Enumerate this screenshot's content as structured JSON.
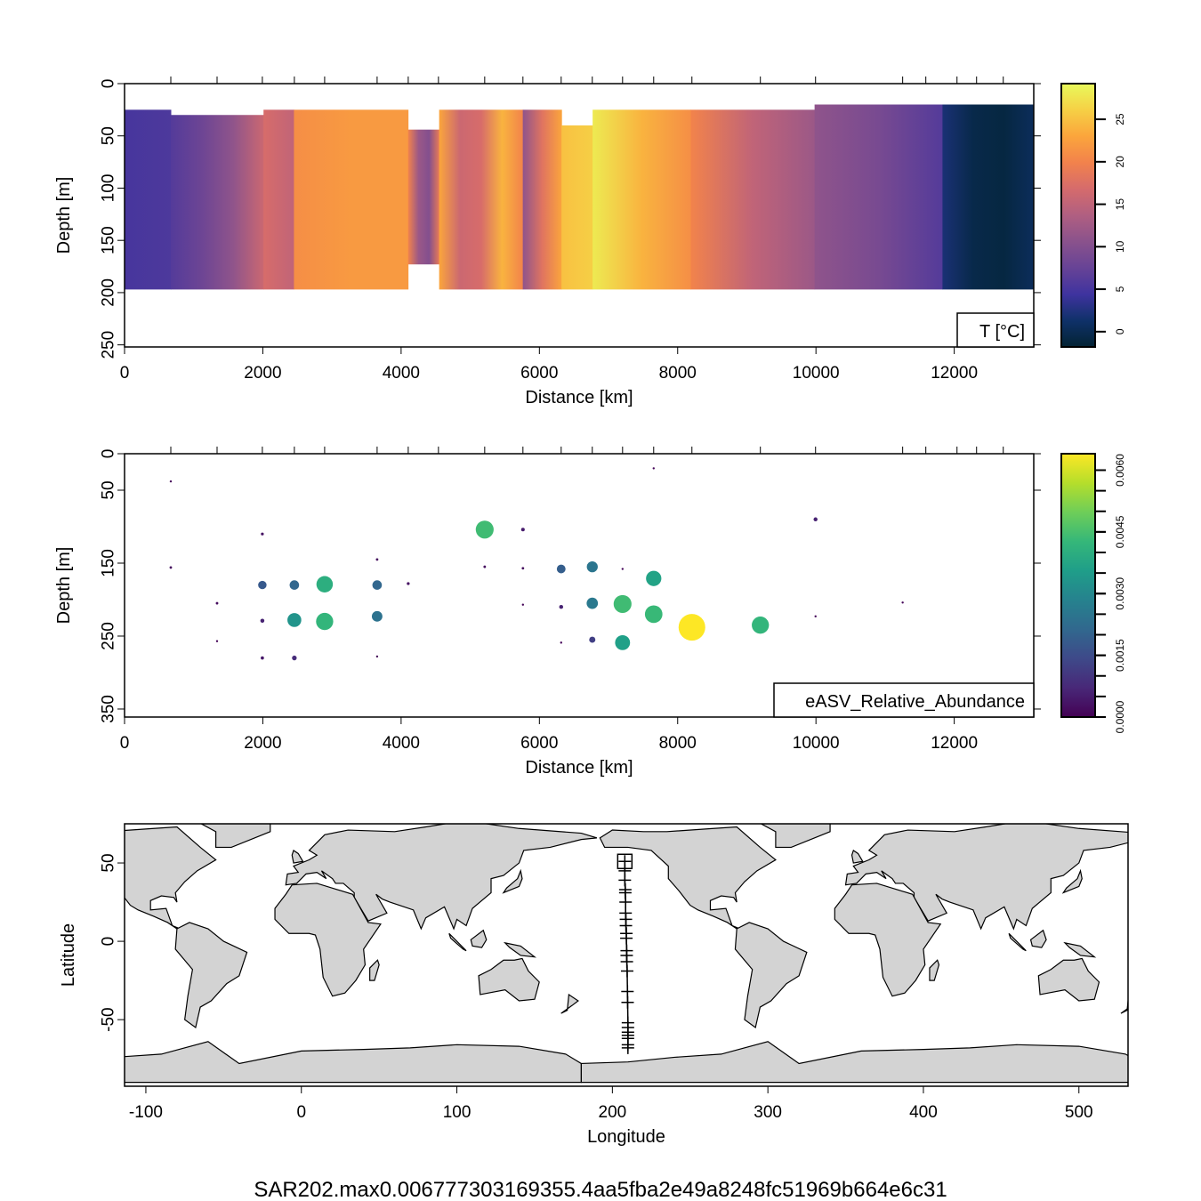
{
  "footer_title": "SAR202.max0.006777303169355.4aa5fba2e49a8248fc51969b664e6c31",
  "chart_data": [
    {
      "type": "heatmap",
      "xlabel": "Distance [km]",
      "ylabel": "Depth [m]",
      "xlim": [
        0,
        13150
      ],
      "ylim": [
        252,
        0
      ],
      "xticks": [
        0,
        2000,
        4000,
        6000,
        8000,
        10000,
        12000
      ],
      "yticks": [
        0,
        50,
        100,
        150,
        200,
        250
      ],
      "station_distances": [
        669,
        1338,
        1993,
        2456,
        2894,
        3653,
        4103,
        4540,
        5209,
        5762,
        6315,
        6765,
        7203,
        7653,
        8206,
        9196,
        9994,
        11254,
        11589,
        12040,
        12323,
        12709
      ],
      "legend_label": "T [°C]",
      "colorbar": {
        "colormap": "thermal",
        "range": [
          -1.8,
          29.2
        ],
        "ticks": [
          0,
          5,
          10,
          15,
          20,
          25
        ]
      },
      "segments": [
        {
          "x": [
            0,
            669
          ],
          "depth": [
            25,
            197
          ],
          "temps": [
            5,
            5.5
          ]
        },
        {
          "x": [
            669,
            2010
          ],
          "depth": [
            30,
            197
          ],
          "temps": [
            6,
            8,
            11,
            16
          ]
        },
        {
          "x": [
            2010,
            2450
          ],
          "depth": [
            25,
            197
          ],
          "temps": [
            17,
            15
          ]
        },
        {
          "x": [
            2450,
            4100
          ],
          "depth": [
            25,
            197
          ],
          "temps": [
            21,
            22,
            22
          ]
        },
        {
          "x": [
            4100,
            4550
          ],
          "depth": [
            44,
            173
          ],
          "temps": [
            20,
            12,
            10,
            19
          ]
        },
        {
          "x": [
            4550,
            5760
          ],
          "depth": [
            25,
            197
          ],
          "temps": [
            23,
            16,
            17,
            24,
            20
          ]
        },
        {
          "x": [
            5760,
            6320
          ],
          "depth": [
            25,
            197
          ],
          "temps": [
            11,
            18,
            23
          ]
        },
        {
          "x": [
            6320,
            6770
          ],
          "depth": [
            40,
            197
          ],
          "temps": [
            25,
            26
          ]
        },
        {
          "x": [
            6770,
            8190
          ],
          "depth": [
            25,
            197
          ],
          "temps": [
            28,
            24,
            21
          ]
        },
        {
          "x": [
            8190,
            9980
          ],
          "depth": [
            25,
            197
          ],
          "temps": [
            20,
            15,
            12
          ]
        },
        {
          "x": [
            9980,
            11830
          ],
          "depth": [
            20,
            197
          ],
          "temps": [
            11,
            9,
            6
          ]
        },
        {
          "x": [
            11830,
            13150
          ],
          "depth": [
            20,
            197
          ],
          "temps": [
            2,
            -0.5,
            -1,
            0.5
          ]
        }
      ]
    },
    {
      "type": "scatter",
      "xlabel": "Distance [km]",
      "ylabel": "Depth [m]",
      "xlim": [
        0,
        13150
      ],
      "ylim": [
        361,
        0
      ],
      "xticks": [
        0,
        2000,
        4000,
        6000,
        8000,
        10000,
        12000
      ],
      "yticks": [
        0,
        50,
        150,
        250,
        350
      ],
      "legend_label": "eASV_Relative_Abundance",
      "colorbar": {
        "colormap": "viridis",
        "range": [
          0,
          0.0064
        ],
        "ticks": [
          "0.0000",
          "0.0015",
          "0.0030",
          "0.0045",
          "0.0060"
        ]
      },
      "points": [
        [
          669,
          38,
          0.0001
        ],
        [
          669,
          156,
          0.0002
        ],
        [
          1338,
          205,
          0.0002
        ],
        [
          1338,
          257,
          0.0001
        ],
        [
          1993,
          110,
          0.0003
        ],
        [
          1993,
          180,
          0.0018
        ],
        [
          1993,
          229,
          0.0006
        ],
        [
          1993,
          280,
          0.0004
        ],
        [
          2456,
          180,
          0.0021
        ],
        [
          2456,
          228,
          0.0033
        ],
        [
          2456,
          280,
          0.0008
        ],
        [
          2894,
          179,
          0.004
        ],
        [
          2894,
          230,
          0.0042
        ],
        [
          3653,
          145,
          0.0002
        ],
        [
          3653,
          180,
          0.0021
        ],
        [
          3653,
          223,
          0.0024
        ],
        [
          3653,
          278,
          0.0001
        ],
        [
          4103,
          178,
          0.0003
        ],
        [
          5209,
          104,
          0.0044
        ],
        [
          5209,
          155,
          0.0002
        ],
        [
          5762,
          104,
          0.0005
        ],
        [
          5762,
          157,
          0.0002
        ],
        [
          5762,
          207,
          0.0001
        ],
        [
          6315,
          158,
          0.0019
        ],
        [
          6315,
          210,
          0.0006
        ],
        [
          6315,
          259,
          0.0001
        ],
        [
          6765,
          155,
          0.0025
        ],
        [
          6765,
          205,
          0.0026
        ],
        [
          6765,
          255,
          0.0012
        ],
        [
          7203,
          158,
          0.0001
        ],
        [
          7203,
          206,
          0.0044
        ],
        [
          7203,
          259,
          0.0036
        ],
        [
          7653,
          20,
          0.0001
        ],
        [
          7653,
          171,
          0.0037
        ],
        [
          7653,
          220,
          0.0043
        ],
        [
          8206,
          238,
          0.0068
        ],
        [
          9196,
          235,
          0.0042
        ],
        [
          9994,
          90,
          0.0006
        ],
        [
          9994,
          223,
          0.0001
        ],
        [
          11254,
          204,
          0.0001
        ]
      ]
    },
    {
      "type": "map",
      "xlabel": "Longitude",
      "ylabel": "Latitude",
      "xlim": [
        -113.7,
        531.6
      ],
      "ylim": [
        -92.5,
        75
      ],
      "xticks": [
        -100,
        0,
        100,
        200,
        300,
        400,
        500
      ],
      "yticks": [
        -50,
        0,
        50
      ],
      "land_color": "#d3d3d3",
      "stations": [
        [
          208,
          51
        ],
        [
          208,
          45
        ],
        [
          208,
          39
        ],
        [
          208.3,
          33
        ],
        [
          208.3,
          31
        ],
        [
          208.5,
          25
        ],
        [
          208.5,
          18
        ],
        [
          208.7,
          14
        ],
        [
          208.7,
          10
        ],
        [
          209,
          5
        ],
        [
          209,
          2
        ],
        [
          209.2,
          -6
        ],
        [
          209.2,
          -9
        ],
        [
          209.3,
          -13
        ],
        [
          209.5,
          -19
        ],
        [
          209.7,
          -32
        ],
        [
          209.8,
          -39
        ],
        [
          210,
          -52
        ],
        [
          210,
          -55
        ],
        [
          210,
          -58
        ],
        [
          210,
          -60
        ],
        [
          210,
          -62
        ],
        [
          210,
          -66
        ],
        [
          210,
          -68
        ]
      ],
      "highlighted_station": [
        208,
        51
      ]
    }
  ]
}
